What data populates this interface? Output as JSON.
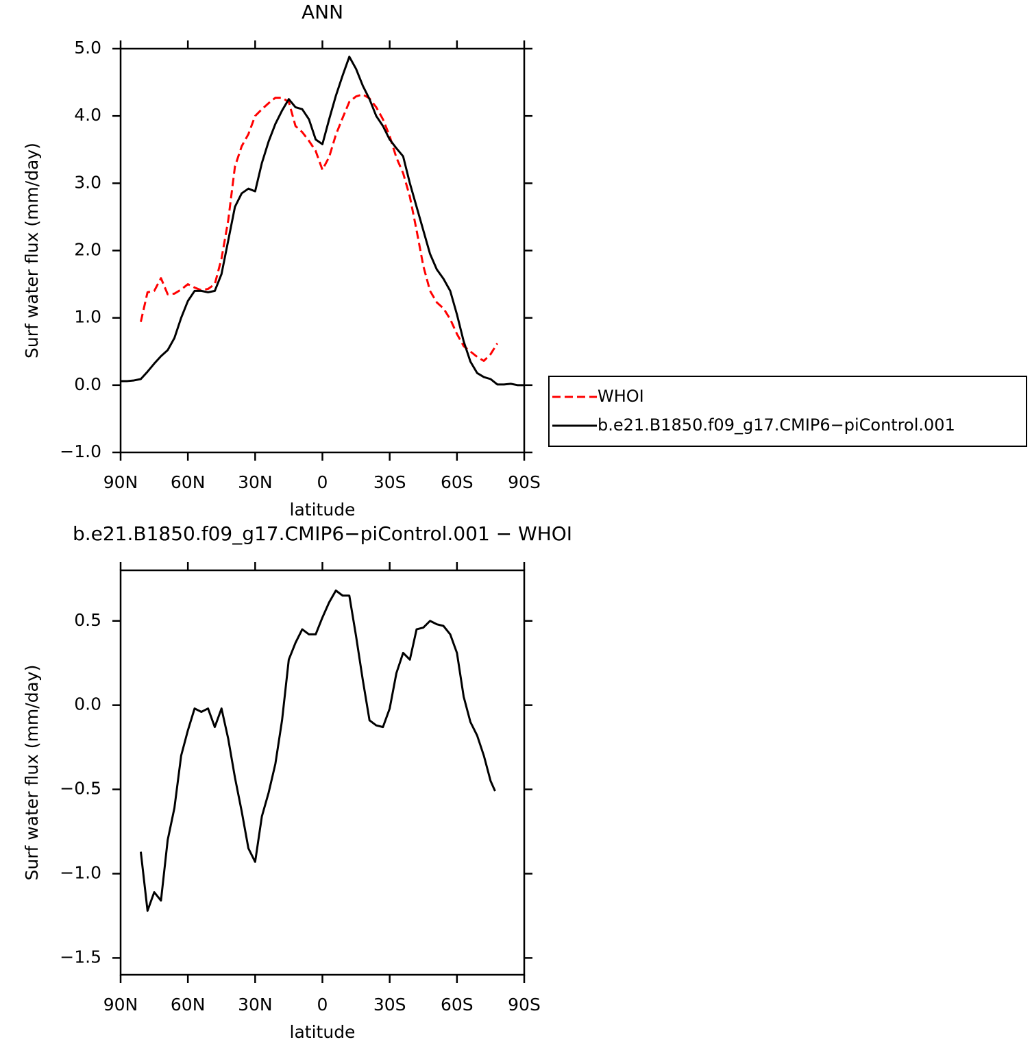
{
  "chart_data": [
    {
      "type": "line",
      "title": "ANN",
      "xlabel": "latitude",
      "ylabel": "Surf water flux (mm/day)",
      "x": [
        90,
        87,
        84,
        81,
        78,
        75,
        72,
        69,
        66,
        63,
        60,
        57,
        54,
        51,
        48,
        45,
        42,
        39,
        36,
        33,
        30,
        27,
        24,
        21,
        18,
        15,
        12,
        9,
        6,
        3,
        0,
        -3,
        -6,
        -9,
        -12,
        -15,
        -18,
        -21,
        -24,
        -27,
        -30,
        -33,
        -36,
        -39,
        -42,
        -45,
        -48,
        -51,
        -54,
        -57,
        -60,
        -63,
        -66,
        -69,
        -72,
        -75,
        -78,
        -81,
        -84,
        -87,
        -90
      ],
      "xlim": [
        90,
        -90
      ],
      "xticks": [
        {
          "value": 90,
          "label": "90N"
        },
        {
          "value": 60,
          "label": "60N"
        },
        {
          "value": 30,
          "label": "30N"
        },
        0,
        {
          "value": -30,
          "label": "30S"
        },
        {
          "value": -60,
          "label": "60S"
        },
        {
          "value": -90,
          "label": "90S"
        }
      ],
      "ylim": [
        -1,
        5
      ],
      "yticks": [
        {
          "value": -1,
          "label": "−1.0"
        },
        {
          "value": 0,
          "label": "0.0"
        },
        {
          "value": 1,
          "label": "1.0"
        },
        {
          "value": 2,
          "label": "2.0"
        },
        {
          "value": 3,
          "label": "3.0"
        },
        {
          "value": 4,
          "label": "4.0"
        },
        {
          "value": 5,
          "label": "5.0"
        }
      ],
      "legend": "right",
      "series": [
        {
          "name": "WHOI",
          "color": "#ff0000",
          "dash": true,
          "values": [
            null,
            null,
            null,
            0.94,
            1.38,
            1.4,
            1.59,
            1.35,
            1.36,
            1.42,
            1.5,
            1.45,
            1.41,
            1.43,
            1.5,
            1.88,
            2.45,
            3.25,
            3.55,
            3.73,
            4.0,
            4.1,
            4.19,
            4.27,
            4.27,
            4.21,
            3.85,
            3.76,
            3.63,
            3.48,
            3.2,
            3.39,
            3.72,
            3.97,
            4.21,
            4.29,
            4.32,
            4.26,
            4.13,
            3.95,
            3.7,
            3.38,
            3.15,
            2.8,
            2.3,
            1.77,
            1.4,
            1.23,
            1.14,
            0.98,
            0.76,
            0.58,
            0.5,
            0.42,
            0.36,
            0.46,
            0.62,
            null,
            null,
            null,
            null
          ]
        },
        {
          "name": "b.e21.B1850.f09_g17.CMIP6−piControl.001",
          "color": "#000000",
          "dash": false,
          "values": [
            0.06,
            0.06,
            0.07,
            0.09,
            0.2,
            0.32,
            0.43,
            0.52,
            0.7,
            1.0,
            1.25,
            1.4,
            1.4,
            1.38,
            1.4,
            1.65,
            2.15,
            2.65,
            2.85,
            2.92,
            2.88,
            3.3,
            3.62,
            3.88,
            4.08,
            4.25,
            4.13,
            4.1,
            3.95,
            3.65,
            3.58,
            3.95,
            4.3,
            4.6,
            4.88,
            4.7,
            4.45,
            4.25,
            4.0,
            3.85,
            3.65,
            3.52,
            3.4,
            3.0,
            2.65,
            2.3,
            1.95,
            1.72,
            1.58,
            1.4,
            1.05,
            0.65,
            0.35,
            0.18,
            0.12,
            0.09,
            0.01,
            0.01,
            0.02,
            0.0,
            0.0
          ]
        }
      ]
    },
    {
      "type": "line",
      "title": "b.e21.B1850.f09_g17.CMIP6−piControl.001  −  WHOI",
      "xlabel": "latitude",
      "ylabel": "Surf water flux (mm/day)",
      "x": [
        81,
        78,
        75,
        72,
        69,
        66,
        63,
        60,
        57,
        54,
        51,
        48,
        45,
        42,
        39,
        36,
        33,
        30,
        27,
        24,
        21,
        18,
        15,
        12,
        9,
        6,
        3,
        0,
        -3,
        -6,
        -9,
        -12,
        -15,
        -18,
        -21,
        -24,
        -27,
        -30,
        -33,
        -36,
        -39,
        -42,
        -45,
        -48,
        -51,
        -54,
        -57,
        -60,
        -63,
        -66,
        -69,
        -72,
        -75,
        -77
      ],
      "xlim": [
        90,
        -90
      ],
      "xticks": [
        {
          "value": 90,
          "label": "90N"
        },
        {
          "value": 60,
          "label": "60N"
        },
        {
          "value": 30,
          "label": "30N"
        },
        0,
        {
          "value": -30,
          "label": "30S"
        },
        {
          "value": -60,
          "label": "60S"
        },
        {
          "value": -90,
          "label": "90S"
        }
      ],
      "ylim": [
        -1.6,
        0.8
      ],
      "yticks": [
        {
          "value": -1.5,
          "label": "−1.5"
        },
        {
          "value": -1,
          "label": "−1.0"
        },
        {
          "value": -0.5,
          "label": "−0.5"
        },
        {
          "value": 0,
          "label": "0.0"
        },
        {
          "value": 0.5,
          "label": "0.5"
        }
      ],
      "series": [
        {
          "color": "#000000",
          "dash": false,
          "values": [
            -0.87,
            -1.22,
            -1.11,
            -1.16,
            -0.8,
            -0.61,
            -0.3,
            -0.15,
            -0.02,
            -0.04,
            -0.02,
            -0.13,
            -0.02,
            -0.2,
            -0.43,
            -0.63,
            -0.85,
            -0.93,
            -0.66,
            -0.52,
            -0.35,
            -0.09,
            0.27,
            0.37,
            0.45,
            0.42,
            0.42,
            0.52,
            0.61,
            0.68,
            0.65,
            0.65,
            0.41,
            0.15,
            -0.09,
            -0.12,
            -0.13,
            -0.02,
            0.19,
            0.31,
            0.27,
            0.45,
            0.46,
            0.5,
            0.48,
            0.47,
            0.42,
            0.31,
            0.05,
            -0.1,
            -0.18,
            -0.3,
            -0.45,
            -0.51
          ]
        }
      ]
    }
  ]
}
